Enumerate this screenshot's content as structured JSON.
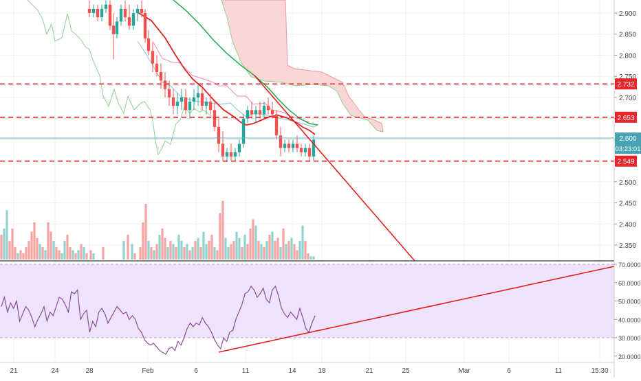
{
  "chart_data": [
    {
      "type": "candlestick",
      "title": "",
      "price_axis": {
        "ticks": [
          "2.900",
          "2.850",
          "2.800",
          "2.750",
          "2.700",
          "2.650",
          "2.600",
          "2.550",
          "2.500",
          "2.450",
          "2.400",
          "2.350"
        ],
        "range": [
          2.305,
          2.925
        ]
      },
      "horizontal_levels": [
        {
          "label": "2.732",
          "value": 2.732
        },
        {
          "label": "2.653",
          "value": 2.653
        },
        {
          "label": "2.549",
          "value": 2.549
        }
      ],
      "current_price": {
        "label": "2.600",
        "value": 2.6
      },
      "countdown": "03:23:01",
      "overlays": [
        "ichimoku-cloud",
        "moving-average-red",
        "moving-average-green",
        "descending-trendline"
      ],
      "volume": true
    },
    {
      "type": "line",
      "indicator": "RSI",
      "axis": {
        "ticks": [
          "70.0000",
          "60.0000",
          "50.0000",
          "40.0000",
          "30.0000",
          "20.0000"
        ],
        "range": [
          16,
          72
        ]
      },
      "band": [
        30,
        70
      ],
      "rsi_values": [
        47,
        52,
        44,
        49,
        46,
        50,
        39,
        43,
        47,
        45,
        41,
        36,
        40,
        43,
        47,
        39,
        44,
        42,
        47,
        52,
        51,
        48,
        44,
        55,
        54,
        56,
        40,
        43,
        45,
        33,
        39,
        36,
        44,
        46,
        43,
        38,
        41,
        44,
        47,
        45,
        43,
        44,
        40,
        42,
        40,
        35,
        33,
        29,
        27,
        26,
        27,
        25,
        23,
        22,
        21,
        24,
        25,
        23,
        28,
        26,
        30,
        35,
        38,
        36,
        38,
        37,
        41,
        38,
        36,
        33,
        29,
        26,
        24,
        30,
        28,
        33,
        34,
        40,
        44,
        48,
        54,
        55,
        58,
        56,
        52,
        54,
        57,
        51,
        49,
        56,
        58,
        53,
        46,
        43,
        41,
        44,
        42,
        40,
        46,
        41,
        35,
        33,
        38,
        42
      ],
      "trendline": true
    }
  ],
  "time_axis": {
    "labels": [
      "21",
      "24",
      "28",
      "Feb",
      "6",
      "11",
      "14",
      "18",
      "21",
      "25",
      "Mar",
      "6",
      "11",
      "15:30"
    ]
  }
}
